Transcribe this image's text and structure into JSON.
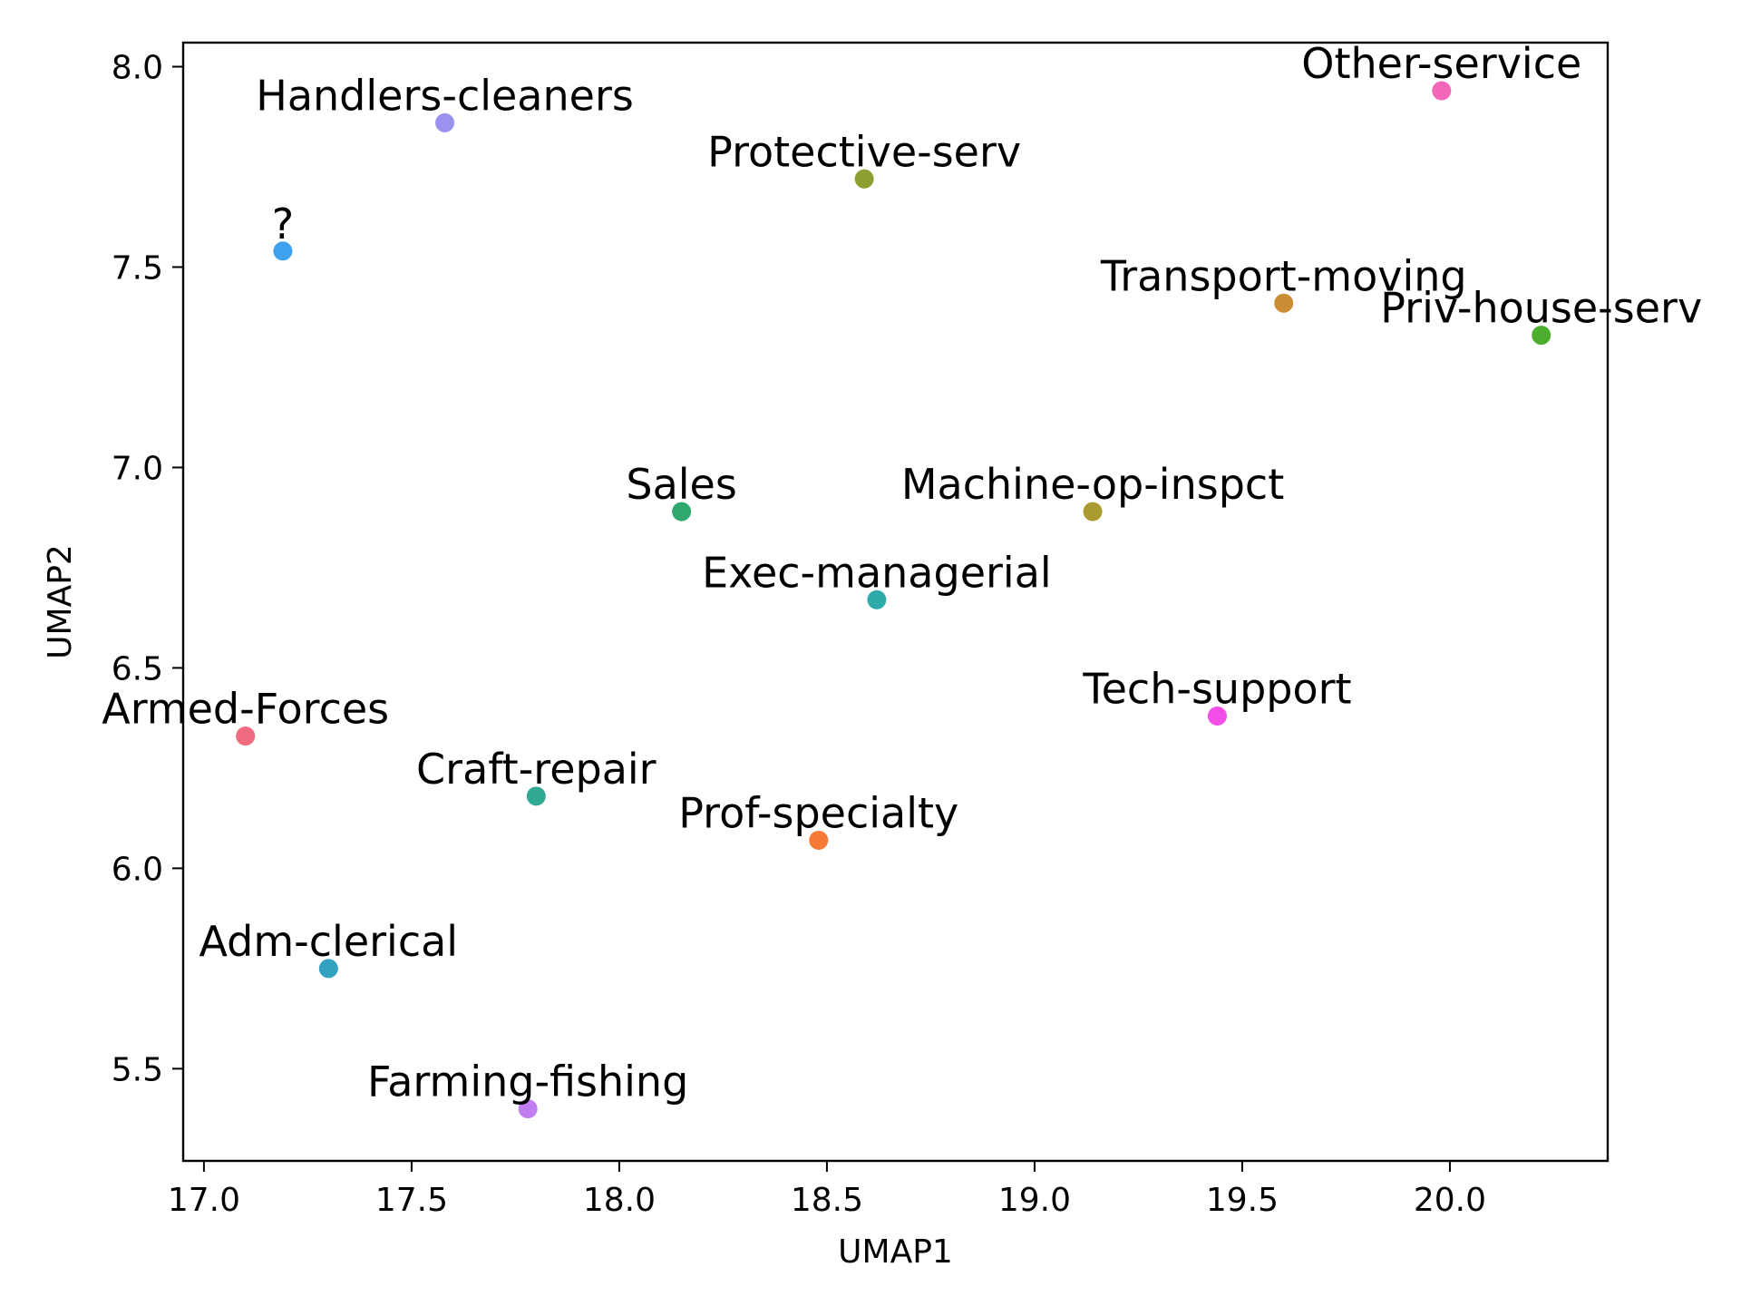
{
  "chart_data": {
    "type": "scatter",
    "title": "",
    "xlabel": "UMAP1",
    "ylabel": "UMAP2",
    "xlim": [
      16.95,
      20.38
    ],
    "ylim": [
      5.27,
      8.06
    ],
    "xticks": [
      "17.0",
      "17.5",
      "18.0",
      "18.5",
      "19.0",
      "19.5",
      "20.0"
    ],
    "yticks": [
      "5.5",
      "6.0",
      "6.5",
      "7.0",
      "7.5",
      "8.0"
    ],
    "grid": false,
    "points": [
      {
        "label": "Handlers-cleaners",
        "x": 17.58,
        "y": 7.86,
        "color": "#9b92ef"
      },
      {
        "label": "?",
        "x": 17.19,
        "y": 7.54,
        "color": "#3ea1ef"
      },
      {
        "label": "Protective-serv",
        "x": 18.59,
        "y": 7.72,
        "color": "#8e9e30"
      },
      {
        "label": "Other-service",
        "x": 19.98,
        "y": 7.94,
        "color": "#f466b8"
      },
      {
        "label": "Transport-moving",
        "x": 19.6,
        "y": 7.41,
        "color": "#cc8e34"
      },
      {
        "label": "Priv-house-serv",
        "x": 20.22,
        "y": 7.33,
        "color": "#4cae2d"
      },
      {
        "label": "Sales",
        "x": 18.15,
        "y": 6.89,
        "color": "#2ea86c"
      },
      {
        "label": "Machine-op-inspct",
        "x": 19.14,
        "y": 6.89,
        "color": "#aa9b30"
      },
      {
        "label": "Exec-managerial",
        "x": 18.62,
        "y": 6.67,
        "color": "#2faaaa"
      },
      {
        "label": "Tech-support",
        "x": 19.44,
        "y": 6.38,
        "color": "#f44ee8"
      },
      {
        "label": "Armed-Forces",
        "x": 17.1,
        "y": 6.33,
        "color": "#f06a80"
      },
      {
        "label": "Craft-repair",
        "x": 17.8,
        "y": 6.18,
        "color": "#31aa94"
      },
      {
        "label": "Prof-specialty",
        "x": 18.48,
        "y": 6.07,
        "color": "#f57a36"
      },
      {
        "label": "Adm-clerical",
        "x": 17.3,
        "y": 5.75,
        "color": "#32a2c0"
      },
      {
        "label": "Farming-fishing",
        "x": 17.78,
        "y": 5.4,
        "color": "#c07ef0"
      }
    ]
  }
}
